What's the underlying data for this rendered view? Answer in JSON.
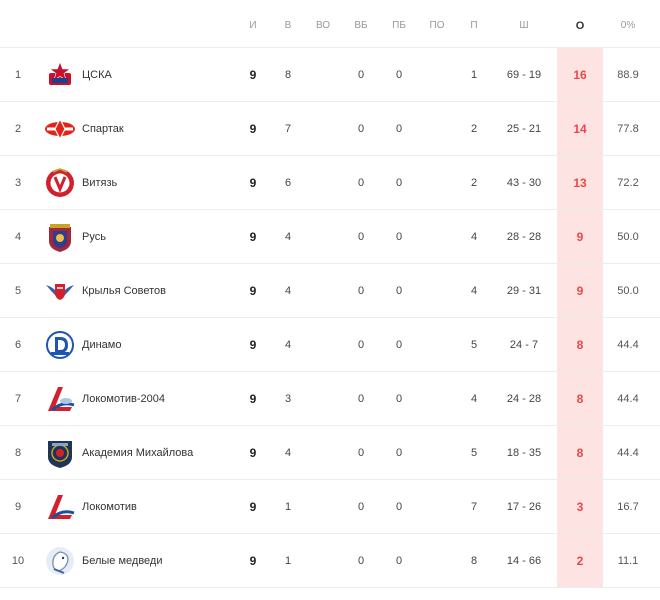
{
  "headers": {
    "games": "И",
    "wins": "В",
    "ot_wins": "ВО",
    "so_wins": "ВБ",
    "so_losses": "ПБ",
    "ot_losses": "ПО",
    "losses": "П",
    "goals": "Ш",
    "points": "О",
    "percent": "0%"
  },
  "rows": [
    {
      "rank": "1",
      "team": "ЦСКА",
      "logo": "cska-logo-icon",
      "games": "9",
      "wins": "8",
      "so_wins": "0",
      "so_losses": "0",
      "losses": "1",
      "goals": "69 - 19",
      "points": "16",
      "percent": "88.9"
    },
    {
      "rank": "2",
      "team": "Спартак",
      "logo": "spartak-logo-icon",
      "games": "9",
      "wins": "7",
      "so_wins": "0",
      "so_losses": "0",
      "losses": "2",
      "goals": "25 - 21",
      "points": "14",
      "percent": "77.8"
    },
    {
      "rank": "3",
      "team": "Витязь",
      "logo": "vityaz-logo-icon",
      "games": "9",
      "wins": "6",
      "so_wins": "0",
      "so_losses": "0",
      "losses": "2",
      "goals": "43 - 30",
      "points": "13",
      "percent": "72.2"
    },
    {
      "rank": "4",
      "team": "Русь",
      "logo": "rus-logo-icon",
      "games": "9",
      "wins": "4",
      "so_wins": "0",
      "so_losses": "0",
      "losses": "4",
      "goals": "28 - 28",
      "points": "9",
      "percent": "50.0"
    },
    {
      "rank": "5",
      "team": "Крылья Советов",
      "logo": "krylia-sovetov-logo-icon",
      "games": "9",
      "wins": "4",
      "so_wins": "0",
      "so_losses": "0",
      "losses": "4",
      "goals": "29 - 31",
      "points": "9",
      "percent": "50.0"
    },
    {
      "rank": "6",
      "team": "Динамо",
      "logo": "dynamo-logo-icon",
      "games": "9",
      "wins": "4",
      "so_wins": "0",
      "so_losses": "0",
      "losses": "5",
      "goals": "24 - 7",
      "points": "8",
      "percent": "44.4"
    },
    {
      "rank": "7",
      "team": "Локомотив-2004",
      "logo": "lokomotiv-2004-logo-icon",
      "games": "9",
      "wins": "3",
      "so_wins": "0",
      "so_losses": "0",
      "losses": "4",
      "goals": "24 - 28",
      "points": "8",
      "percent": "44.4"
    },
    {
      "rank": "8",
      "team": "Академия Михайлова",
      "logo": "mikhailov-academy-logo-icon",
      "games": "9",
      "wins": "4",
      "so_wins": "0",
      "so_losses": "0",
      "losses": "5",
      "goals": "18 - 35",
      "points": "8",
      "percent": "44.4"
    },
    {
      "rank": "9",
      "team": "Локомотив",
      "logo": "lokomotiv-logo-icon",
      "games": "9",
      "wins": "1",
      "so_wins": "0",
      "so_losses": "0",
      "losses": "7",
      "goals": "17 - 26",
      "points": "3",
      "percent": "16.7"
    },
    {
      "rank": "10",
      "team": "Белые медведи",
      "logo": "belye-medvedi-logo-icon",
      "games": "9",
      "wins": "1",
      "so_wins": "0",
      "so_losses": "0",
      "losses": "8",
      "goals": "14 - 66",
      "points": "2",
      "percent": "11.1"
    }
  ],
  "colors": {
    "points_text": "#e8484a",
    "points_column_bg": "#fde3e1"
  }
}
